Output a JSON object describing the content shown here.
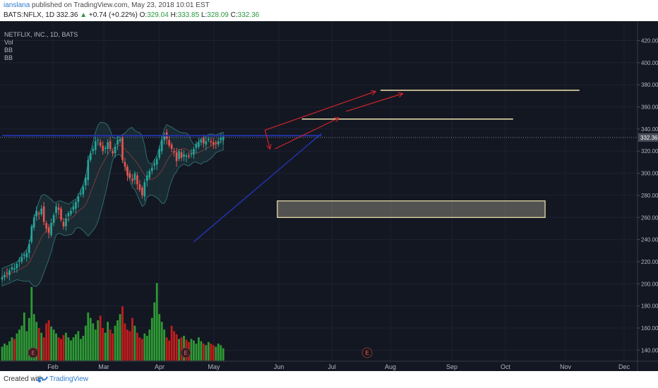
{
  "header": {
    "author": "ianslana",
    "published_text": "published on TradingView.com, May 23, 2018 10:01 EST",
    "symbol": "BATS:NFLX, 1D",
    "price": "332.36",
    "change_arrow": "▲",
    "change": "+0.74 (+0.22%)",
    "open_label": "O:",
    "open": "329.04",
    "high_label": "H:",
    "high": "333.85",
    "low_label": "L:",
    "low": "328.09",
    "close_label": "C:",
    "close": "332.36"
  },
  "indicators": {
    "title": "NETFLIX, INC., 1D, BATS",
    "vol": "Vol",
    "bb1": "BB",
    "bb2": "BB"
  },
  "footer": {
    "created_with": "Created with",
    "brand": "TradingView"
  },
  "colors": {
    "background": "#131722",
    "up": "#26a69a",
    "down": "#ef5350",
    "vol_up": "#2e9a35",
    "vol_down": "#c21d1d",
    "band_fill": "#1f3b3f",
    "trend_blue": "#2233aa",
    "projection_red": "#d0242a",
    "target_line": "#f3e6b0",
    "grid": "#1e2230"
  },
  "chart_data": {
    "type": "candlestick",
    "symbol": "BATS:NFLX",
    "timeframe": "1D",
    "last_price": 332.36,
    "y_axis": {
      "ticks": [
        140,
        160,
        180,
        200,
        220,
        240,
        260,
        280,
        300,
        320,
        340,
        360,
        380,
        400,
        420
      ],
      "range": [
        130,
        428
      ]
    },
    "x_axis": {
      "ticks": [
        "Feb",
        "Mar",
        "Apr",
        "May",
        "Jun",
        "Jul",
        "Aug",
        "Sep",
        "Oct",
        "Nov",
        "Dec"
      ]
    },
    "price_path": [
      206,
      208,
      209,
      212,
      215,
      214,
      218,
      221,
      224,
      226,
      228,
      236,
      252,
      260,
      266,
      263,
      268,
      256,
      250,
      246,
      255,
      262,
      270,
      267,
      258,
      252,
      259,
      264,
      266,
      270,
      274,
      279,
      282,
      288,
      296,
      312,
      318,
      322,
      329,
      330,
      325,
      320,
      323,
      328,
      322,
      318,
      324,
      330,
      331,
      312,
      306,
      298,
      296,
      293,
      300,
      290,
      285,
      280,
      292,
      298,
      302,
      305,
      309,
      313,
      322,
      330,
      335,
      331,
      325,
      322,
      319,
      311,
      320,
      314,
      317,
      316,
      315,
      318,
      322,
      326,
      328,
      330,
      327,
      329,
      331,
      328,
      326,
      327,
      329,
      332,
      333
    ],
    "volume_relative": [
      0.18,
      0.22,
      0.2,
      0.25,
      0.3,
      0.28,
      0.35,
      0.4,
      0.45,
      0.62,
      0.38,
      0.55,
      0.95,
      0.6,
      0.5,
      0.42,
      0.36,
      0.3,
      0.48,
      0.52,
      0.44,
      0.4,
      0.35,
      0.3,
      0.28,
      0.33,
      0.36,
      0.3,
      0.26,
      0.3,
      0.34,
      0.38,
      0.28,
      0.32,
      0.45,
      0.62,
      0.55,
      0.48,
      0.4,
      0.52,
      0.58,
      0.42,
      0.36,
      0.5,
      0.4,
      0.35,
      0.45,
      0.52,
      0.6,
      0.7,
      0.48,
      0.4,
      0.38,
      0.55,
      0.45,
      0.36,
      0.3,
      0.28,
      0.35,
      0.32,
      0.4,
      0.55,
      0.75,
      1.0,
      0.6,
      0.5,
      0.4,
      0.3,
      0.26,
      0.45,
      0.38,
      0.34,
      0.28,
      0.3,
      0.32,
      0.27,
      0.24,
      0.28,
      0.26,
      0.22,
      0.3,
      0.25,
      0.22,
      0.2,
      0.24,
      0.22,
      0.2,
      0.18,
      0.22,
      0.2,
      0.16
    ],
    "volume_axis_labels": [
      140,
      160,
      180,
      200
    ],
    "annotations": {
      "support_trendline": [
        {
          "day": 78,
          "price": 238
        },
        {
          "day": 130,
          "price": 336
        }
      ],
      "resistance_line": [
        {
          "day": 0,
          "price": 334
        },
        {
          "day": 130,
          "price": 334
        }
      ],
      "target_lines": [
        {
          "day_start": 122,
          "day_end": 208,
          "price": 349
        },
        {
          "day_start": 154,
          "day_end": 235,
          "price": 375
        }
      ],
      "support_zone": {
        "day_start": 112,
        "day_end": 221,
        "price_low": 260,
        "price_high": 275
      },
      "projections": [
        {
          "from": {
            "day": 107,
            "price": 339
          },
          "to": {
            "day": 152,
            "price": 374
          }
        },
        {
          "from": {
            "day": 111,
            "price": 322
          },
          "to": {
            "day": 137,
            "price": 350
          }
        },
        {
          "from": {
            "day": 140,
            "price": 356
          },
          "to": {
            "day": 163,
            "price": 372
          }
        },
        {
          "from": {
            "day": 107,
            "price": 339
          },
          "to": {
            "day": 109,
            "price": 322
          }
        }
      ],
      "earnings_markers": [
        "E",
        "E",
        "E"
      ]
    }
  }
}
